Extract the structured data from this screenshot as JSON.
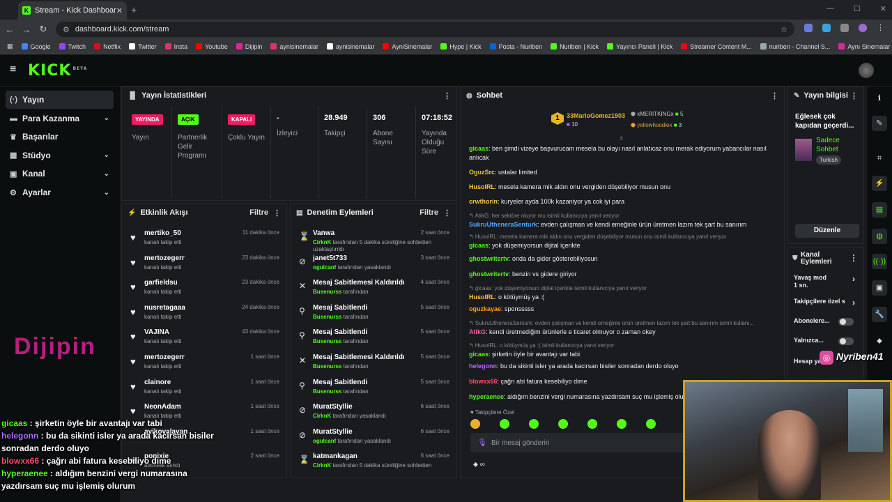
{
  "browser": {
    "tab_title": "Stream - Kick Dashboard",
    "url": "dashboard.kick.com/stream",
    "bookmarks": [
      {
        "label": "Google",
        "color": "#4285f4"
      },
      {
        "label": "Twitch",
        "color": "#9146ff"
      },
      {
        "label": "Netflix",
        "color": "#e50914"
      },
      {
        "label": "Twitter",
        "color": "#ffffff"
      },
      {
        "label": "Insta",
        "color": "#e1306c"
      },
      {
        "label": "Youtube",
        "color": "#ff0000"
      },
      {
        "label": "Dijipin",
        "color": "#e0259c"
      },
      {
        "label": "aynisinemalar",
        "color": "#e1306c"
      },
      {
        "label": "aynisinemalar",
        "color": "#ffffff"
      },
      {
        "label": "AyniSinemalar",
        "color": "#ff0000"
      },
      {
        "label": "Hype | Kick",
        "color": "#53fc18"
      },
      {
        "label": "Posta - Nuriben",
        "color": "#0a64d6"
      },
      {
        "label": "Nuriben | Kick",
        "color": "#53fc18"
      },
      {
        "label": "Yayıncı Paneli | Kick",
        "color": "#53fc18"
      },
      {
        "label": "Streamer Content M...",
        "color": "#e50914"
      },
      {
        "label": "nuriben - Channel S...",
        "color": "#9aa"
      },
      {
        "label": "Aynı Sinemalar - Ça...",
        "color": "#e0259c"
      }
    ]
  },
  "kick": {
    "logo": "KICK",
    "logo_sup": "BETA"
  },
  "sidebar": {
    "items": [
      {
        "label": "Yayın",
        "icon": "(·)",
        "chev": ""
      },
      {
        "label": "Para Kazanma",
        "icon": "▬",
        "chev": "⌄"
      },
      {
        "label": "Başarılar",
        "icon": "♛",
        "chev": ""
      },
      {
        "label": "Stüdyo",
        "icon": "▦",
        "chev": "⌄"
      },
      {
        "label": "Kanal",
        "icon": "▣",
        "chev": "⌄"
      },
      {
        "label": "Ayarlar",
        "icon": "⚙",
        "chev": "⌄"
      }
    ]
  },
  "stats": {
    "title": "Yayın İstatistikleri",
    "cols": [
      {
        "badge": "YAYINDA",
        "badge_color": "#e91e63",
        "badge_text": "#ffffff",
        "label": "Yayın",
        "value": ""
      },
      {
        "badge": "AÇIK",
        "badge_color": "#53fc18",
        "badge_text": "#000000",
        "label": "Partnerlik Gelir Programı",
        "value": ""
      },
      {
        "badge": "KAPALI",
        "badge_color": "#e91e63",
        "badge_text": "#ffffff",
        "label": "Çoklu Yayın",
        "value": ""
      },
      {
        "badge": "",
        "label": "İzleyici",
        "value": "-"
      },
      {
        "badge": "",
        "label": "Takipçi",
        "value": "28.949"
      },
      {
        "badge": "",
        "label": "Abone Sayısı",
        "value": "306"
      },
      {
        "badge": "",
        "label": "Yayında Olduğu Süre",
        "value": "07:18:52"
      }
    ]
  },
  "activity": {
    "title": "Etkinlik Akışı",
    "filter": "Filtre",
    "items": [
      {
        "name": "mertiko_50",
        "sub": "kanalı takip etti",
        "time": "11 dakika önce"
      },
      {
        "name": "mertozegerr",
        "sub": "kanalı takip etti",
        "time": "23 dakika önce"
      },
      {
        "name": "garfieldsu",
        "sub": "kanalı takip etti",
        "time": "23 dakika önce"
      },
      {
        "name": "nusretagaaa",
        "sub": "kanalı takip etti",
        "time": "24 dakika önce"
      },
      {
        "name": "VAJINA",
        "sub": "kanalı takip etti",
        "time": "43 dakika önce"
      },
      {
        "name": "mertozegerr",
        "sub": "kanalı takip etti",
        "time": "1 saat önce"
      },
      {
        "name": "clainore",
        "sub": "kanalı takip etti",
        "time": "1 saat önce"
      },
      {
        "name": "NeonAdam",
        "sub": "kanalı takip etti",
        "time": "1 saat önce"
      },
      {
        "name": "ayikovalayan",
        "sub": "",
        "time": "1 saat önce"
      },
      {
        "name": "ponixie",
        "sub": "abonelik alındı",
        "time": "2 saat önce"
      }
    ]
  },
  "moderation": {
    "title": "Denetim Eylemleri",
    "filter": "Filtre",
    "items": [
      {
        "icon": "⌛",
        "name": "Vanwa",
        "by": "CirknK",
        "sub": " tarafından 5 dakika süreliğine sohbetten uzaklaştırıldı",
        "time": "2 saat önce"
      },
      {
        "icon": "⊘",
        "name": "janet5t733",
        "by": "ogulcanf",
        "sub": " tarafından yasaklandı",
        "time": "3 saat önce"
      },
      {
        "icon": "✕",
        "name": "Mesaj Sabitlemesi Kaldırıldı",
        "by": "Busenurss",
        "sub": " tarafından",
        "time": "4 saat önce"
      },
      {
        "icon": "⚲",
        "name": "Mesaj Sabitlendi",
        "by": "Busenurss",
        "sub": " tarafından",
        "time": "5 saat önce"
      },
      {
        "icon": "⚲",
        "name": "Mesaj Sabitlendi",
        "by": "Busenurss",
        "sub": " tarafından",
        "time": "5 saat önce"
      },
      {
        "icon": "✕",
        "name": "Mesaj Sabitlemesi Kaldırıldı",
        "by": "Busenurss",
        "sub": " tarafından",
        "time": "5 saat önce"
      },
      {
        "icon": "⚲",
        "name": "Mesaj Sabitlendi",
        "by": "Busenurss",
        "sub": " tarafından",
        "time": "5 saat önce"
      },
      {
        "icon": "⊘",
        "name": "MuratStyllie",
        "by": "CirknK",
        "sub": " tarafından yasaklandı",
        "time": "6 saat önce"
      },
      {
        "icon": "⊘",
        "name": "MuratStyllie",
        "by": "ogulcanf",
        "sub": " tarafından yasaklandı",
        "time": "6 saat önce"
      },
      {
        "icon": "⌛",
        "name": "katmankagan",
        "by": "CirknK",
        "sub": " tarafından 5 dakika süreliğine sohbetten",
        "time": "6 saat önce"
      }
    ]
  },
  "chat": {
    "title": "Sohbet",
    "top": [
      {
        "name": "33MarioGomez1903",
        "count": "10"
      },
      {
        "name": "xMERITKINGx",
        "count": "5"
      },
      {
        "name": "yellowhoodiex",
        "count": "3"
      }
    ],
    "messages": [
      {
        "reply": "",
        "user": "gicaas",
        "color": "#53fc18",
        "text": "ben şimdi vizeye başvurucam mesela bu olayı nasıl anlatıcaz onu merak ediyorum yabancılar nasıl anlıcak"
      },
      {
        "reply": "",
        "user": "OguzSrc",
        "color": "#f5c542",
        "text": "ustalar limited"
      },
      {
        "reply": "",
        "user": "HusolRL",
        "color": "#f5c542",
        "text": "mesela kamera mik aldın onu vergiden düşebiliyor musun onu"
      },
      {
        "reply": "",
        "user": "crwthorin",
        "color": "#f5c542",
        "text": "kuryeler ayda 100k kazaniyor ya cok iyi para"
      },
      {
        "reply": "↰ AtikG: her sektöre oluyor mu isimli kullanıcıya yanıt veriyor",
        "user": "SukruUtheneraSenturk",
        "color": "#4aa8ff",
        "text": "evden çalışman ve kendi emeğinle ürün üretmen lazım tek şart bu sanırım"
      },
      {
        "reply": "↰ HusolRL: mesela kamera mik aldın onu vergiden düşebiliyor musun onu isimli kullanıcıya yanıt veriyor",
        "user": "gicaas",
        "color": "#53fc18",
        "text": "yok düşemiyorsun dijital içerikte"
      },
      {
        "reply": "",
        "user": "ghostwritertv",
        "color": "#53fc18",
        "text": "onda da gider gösterebiliyosun"
      },
      {
        "reply": "",
        "user": "ghostwritertv",
        "color": "#53fc18",
        "text": "benzin vs gidere giriyor"
      },
      {
        "reply": "↰ gicaas: yok düşemiyorsun dijital içerikte isimli kullanıcıya yanıt veriyor",
        "user": "HusolRL",
        "color": "#f5c542",
        "text": "o kötüymüş ya :("
      },
      {
        "reply": "",
        "user": "oguzkayae",
        "color": "#ff9f1c",
        "text": "sponsssss"
      },
      {
        "reply": "↰ SukruUtheneraSenturk: evden çalışman ve kendi emeğinle ürün üretmen lazım tek şart bu sanırım isimli kullanı...",
        "user": "AtikG",
        "color": "#ff5ba8",
        "text": "kendi üretmediğim ürünlerle e ticaret olmuyor o zaman okey"
      },
      {
        "reply": "↰ HusolRL: o kötüymüş ya :( isimli kullanıcıya yanıt veriyor",
        "user": "gicaas",
        "color": "#53fc18",
        "text": "şirketin öyle bir avantajı var tabi"
      },
      {
        "reply": "",
        "user": "helegonn",
        "color": "#b06bff",
        "text": "bu da sikinti isler ya arada kacirsan bisiler sonradan derdo oluyo"
      },
      {
        "reply": "",
        "user": "blowxx66",
        "color": "#ff4d6d",
        "text": "çağrı abi fatura kesebiliyo dime"
      },
      {
        "reply": "",
        "user": "hyperaenee",
        "color": "#53fc18",
        "text": "aldığım benzini vergi numarasına yazdırsam suç mu işlemiş olurum"
      }
    ],
    "followers_only": "Takipçilere Özel",
    "input_placeholder": "Bir mesaj gönderin"
  },
  "stream_info": {
    "title": "Yayın bilgisi",
    "stream_title": "Eğlesek çok kapıdan geçerdi...",
    "category": "Sadece Sohbet",
    "language": "Turkish",
    "edit_button": "Düzenle"
  },
  "channel_actions": {
    "title": "Kanal Eylemleri",
    "items": [
      {
        "label": "Yavaş mod",
        "sub": "1 sn.",
        "type": "chevron"
      },
      {
        "label": "Takipçilere özel s",
        "sub": "",
        "type": "chevron"
      },
      {
        "label": "Abonelere...",
        "sub": "",
        "type": "toggle"
      },
      {
        "label": "Yalnızca...",
        "sub": "",
        "type": "toggle"
      },
      {
        "label": "Hesap ya...",
        "sub": "",
        "type": "none"
      }
    ]
  },
  "overlay": {
    "cam_name": "Nyriben41",
    "brand": "Dijipin",
    "chat": [
      {
        "user": "gicaas",
        "color": "#53fc18",
        "text": "şirketin öyle bir avantajı var tabi"
      },
      {
        "user": "helegonn",
        "color": "#b06bff",
        "text": "bu da sikinti isler ya arada kacirsan bisiler"
      },
      {
        "user": "",
        "color": "#ffffff",
        "text": "sonradan derdo oluyo"
      },
      {
        "user": "blowxx66",
        "color": "#ff4d6d",
        "text": "çağrı abi fatura kesebiliyo dime"
      },
      {
        "user": "hyperaenee",
        "color": "#53fc18",
        "text": "aldığım benzini vergi numarasına"
      },
      {
        "user": "",
        "color": "#ffffff",
        "text": "yazdırsam suç mu işlemiş olurum"
      }
    ]
  }
}
